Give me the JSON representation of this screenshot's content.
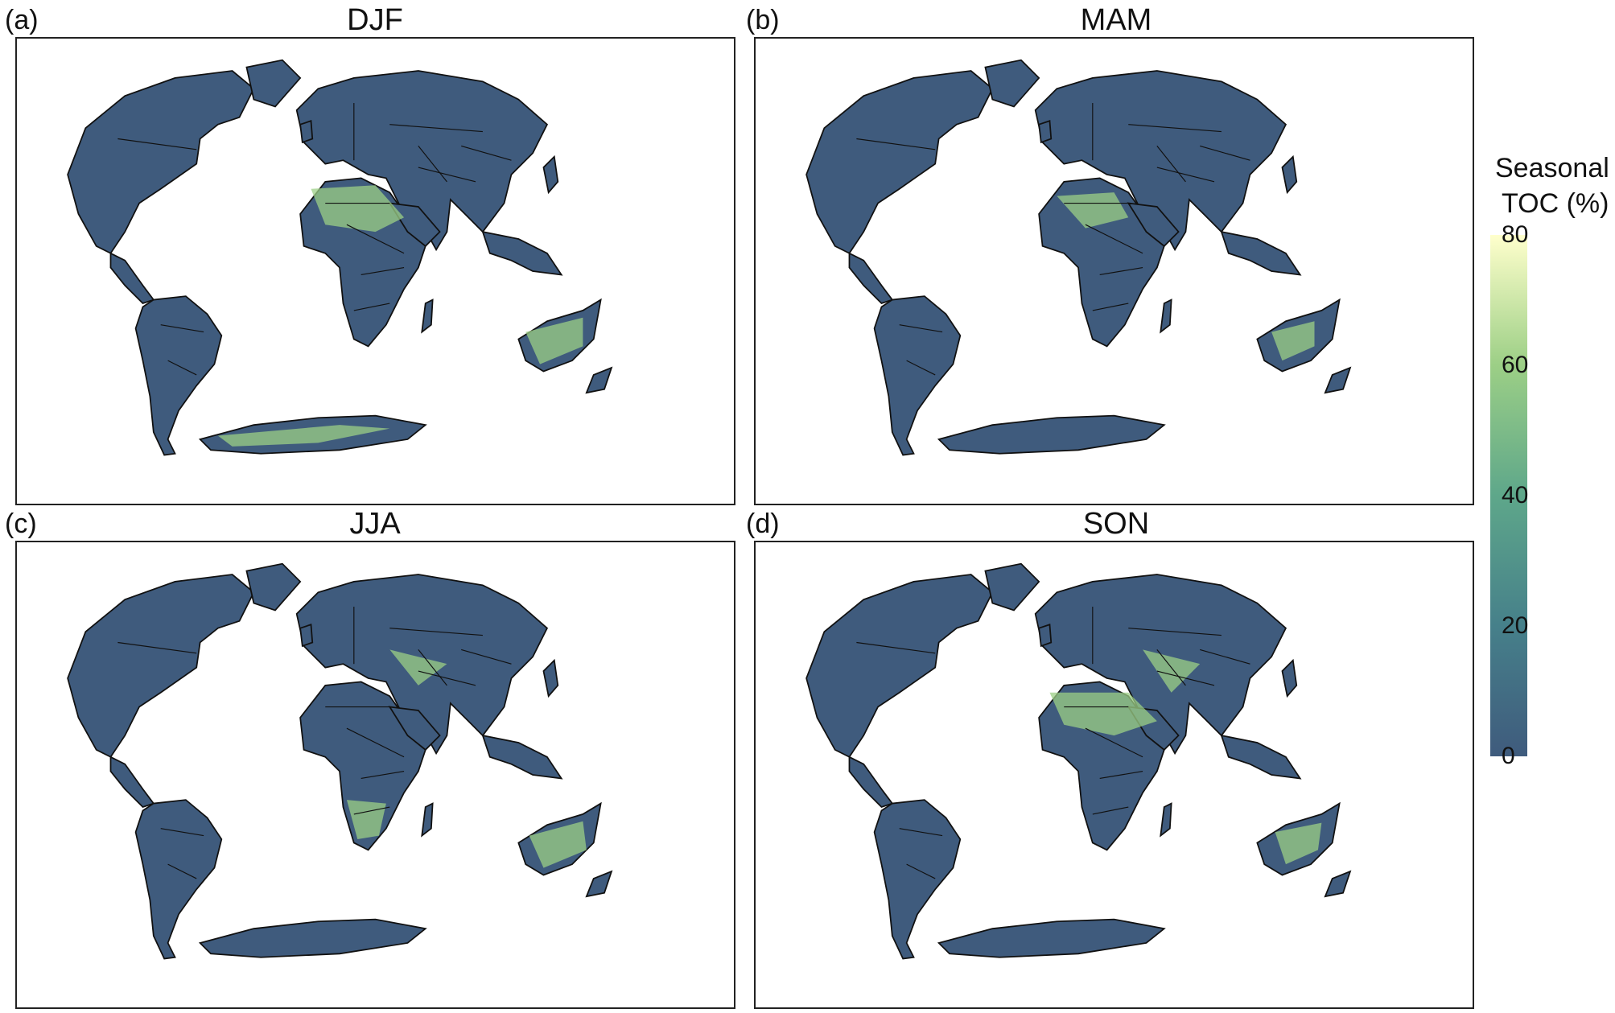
{
  "figure": {
    "panels": [
      {
        "label": "(a)",
        "title": "DJF"
      },
      {
        "label": "(b)",
        "title": "MAM"
      },
      {
        "label": "(c)",
        "title": "JJA"
      },
      {
        "label": "(d)",
        "title": "SON"
      }
    ],
    "colorbar": {
      "title_line1": "Seasonal",
      "title_line2": "TOC (%)",
      "ticks": [
        "80",
        "60",
        "40",
        "20",
        "0"
      ],
      "range": [
        0,
        80
      ],
      "colors": [
        "#3f5b7d",
        "#46808a",
        "#5ea78a",
        "#9ccf86",
        "#ffffcc"
      ]
    },
    "land_color_low": "#3f5b7d",
    "land_color_high": "#9ccf86",
    "border_color": "#111111"
  }
}
